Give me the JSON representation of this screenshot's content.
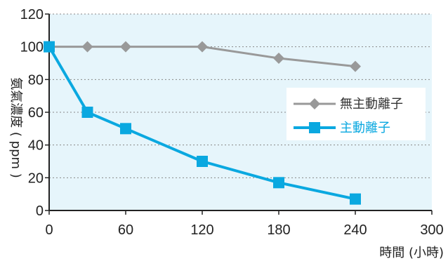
{
  "chart_data": {
    "type": "line",
    "xlabel": "時間 (小時)",
    "ylabel": "氨氣濃度 ( ppm )",
    "xlim": [
      0,
      300
    ],
    "ylim": [
      0,
      120
    ],
    "x_ticks": [
      0,
      60,
      120,
      180,
      240,
      300
    ],
    "y_ticks": [
      0,
      20,
      40,
      60,
      80,
      100,
      120
    ],
    "grid": "horizontal dotted",
    "legend_position": "right",
    "series": [
      {
        "name": "無主動離子",
        "color": "#999999",
        "marker": "diamond",
        "x": [
          0,
          30,
          60,
          120,
          180,
          240
        ],
        "y": [
          100,
          100,
          100,
          100,
          93,
          88
        ]
      },
      {
        "name": "主動離子",
        "color": "#0aa8e0",
        "marker": "square",
        "x": [
          0,
          30,
          60,
          120,
          180,
          240
        ],
        "y": [
          100,
          60,
          50,
          30,
          17,
          7
        ]
      }
    ]
  },
  "colors": {
    "plot_background": "#e6f5fb",
    "axis": "#222222",
    "grid": "#888888"
  }
}
